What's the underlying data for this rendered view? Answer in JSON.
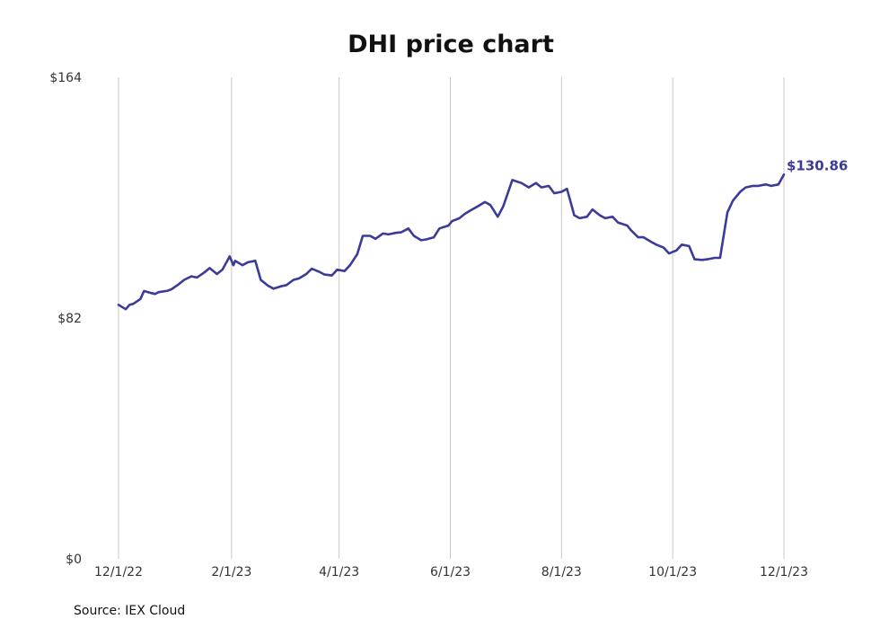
{
  "chart_data": {
    "type": "line",
    "title": "DHI price chart",
    "source": "Source: IEX Cloud",
    "line_color": "#3b3b98",
    "grid_color": "#c8c8c8",
    "y_axis": {
      "min": 0,
      "max": 164,
      "tick_values": [
        0,
        82,
        164
      ],
      "tick_labels": [
        "$0",
        "$82",
        "$164"
      ]
    },
    "x_axis": {
      "min": "2022-12-01",
      "max": "2023-12-01",
      "tick_values": [
        "2022-12-01",
        "2023-02-01",
        "2023-04-01",
        "2023-06-01",
        "2023-08-01",
        "2023-10-01",
        "2023-12-01"
      ],
      "tick_labels": [
        "12/1/22",
        "2/1/23",
        "4/1/23",
        "6/1/23",
        "8/1/23",
        "10/1/23",
        "12/1/23"
      ]
    },
    "grid": {
      "vertical": true,
      "horizontal": false
    },
    "end_label": "$130.86",
    "series": [
      {
        "x": [
          "2022-12-01",
          "2022-12-05",
          "2022-12-07",
          "2022-12-09",
          "2022-12-13",
          "2022-12-15",
          "2022-12-19",
          "2022-12-21",
          "2022-12-23",
          "2022-12-28",
          "2022-12-30",
          "2023-01-03",
          "2023-01-06",
          "2023-01-10",
          "2023-01-13",
          "2023-01-17",
          "2023-01-20",
          "2023-01-24",
          "2023-01-27",
          "2023-01-31",
          "2023-02-02",
          "2023-02-03",
          "2023-02-07",
          "2023-02-10",
          "2023-02-14",
          "2023-02-17",
          "2023-02-21",
          "2023-02-24",
          "2023-02-28",
          "2023-03-03",
          "2023-03-07",
          "2023-03-10",
          "2023-03-14",
          "2023-03-17",
          "2023-03-21",
          "2023-03-24",
          "2023-03-28",
          "2023-03-31",
          "2023-04-04",
          "2023-04-07",
          "2023-04-11",
          "2023-04-14",
          "2023-04-18",
          "2023-04-21",
          "2023-04-25",
          "2023-04-28",
          "2023-05-02",
          "2023-05-05",
          "2023-05-09",
          "2023-05-12",
          "2023-05-16",
          "2023-05-19",
          "2023-05-23",
          "2023-05-26",
          "2023-05-31",
          "2023-06-02",
          "2023-06-06",
          "2023-06-09",
          "2023-06-13",
          "2023-06-16",
          "2023-06-20",
          "2023-06-23",
          "2023-06-27",
          "2023-06-30",
          "2023-07-05",
          "2023-07-10",
          "2023-07-14",
          "2023-07-18",
          "2023-07-21",
          "2023-07-25",
          "2023-07-28",
          "2023-08-01",
          "2023-08-04",
          "2023-08-08",
          "2023-08-11",
          "2023-08-15",
          "2023-08-18",
          "2023-08-22",
          "2023-08-25",
          "2023-08-29",
          "2023-09-01",
          "2023-09-06",
          "2023-09-08",
          "2023-09-12",
          "2023-09-15",
          "2023-09-19",
          "2023-09-22",
          "2023-09-26",
          "2023-09-29",
          "2023-10-03",
          "2023-10-06",
          "2023-10-10",
          "2023-10-13",
          "2023-10-17",
          "2023-10-20",
          "2023-10-24",
          "2023-10-27",
          "2023-10-31",
          "2023-11-03",
          "2023-11-07",
          "2023-11-10",
          "2023-11-14",
          "2023-11-17",
          "2023-11-21",
          "2023-11-24",
          "2023-11-28",
          "2023-12-01"
        ],
        "y": [
          86.5,
          85.0,
          86.5,
          86.8,
          88.5,
          91.2,
          90.5,
          90.2,
          90.8,
          91.3,
          91.8,
          93.5,
          95.0,
          96.2,
          95.8,
          97.5,
          99.0,
          97.0,
          98.5,
          103.0,
          100.0,
          101.5,
          100.0,
          101.0,
          101.5,
          95.0,
          93.0,
          92.0,
          92.8,
          93.2,
          95.0,
          95.5,
          97.0,
          98.8,
          97.8,
          96.8,
          96.5,
          98.5,
          98.0,
          100.0,
          103.8,
          110.0,
          110.0,
          109.0,
          110.8,
          110.5,
          111.0,
          111.2,
          112.5,
          110.0,
          108.5,
          108.8,
          109.5,
          112.5,
          113.5,
          115.0,
          116.0,
          117.5,
          119.0,
          120.0,
          121.5,
          120.5,
          116.5,
          120.0,
          129.0,
          128.0,
          126.5,
          128.0,
          126.5,
          127.0,
          124.5,
          125.0,
          126.0,
          117.0,
          116.0,
          116.5,
          119.0,
          117.0,
          116.0,
          116.5,
          114.5,
          113.5,
          112.0,
          109.5,
          109.5,
          108.0,
          107.0,
          106.0,
          104.0,
          105.0,
          107.0,
          106.5,
          102.0,
          101.8,
          102.0,
          102.5,
          102.5,
          118.0,
          122.0,
          125.0,
          126.5,
          127.0,
          127.0,
          127.5,
          127.0,
          127.5,
          130.86
        ]
      }
    ]
  }
}
